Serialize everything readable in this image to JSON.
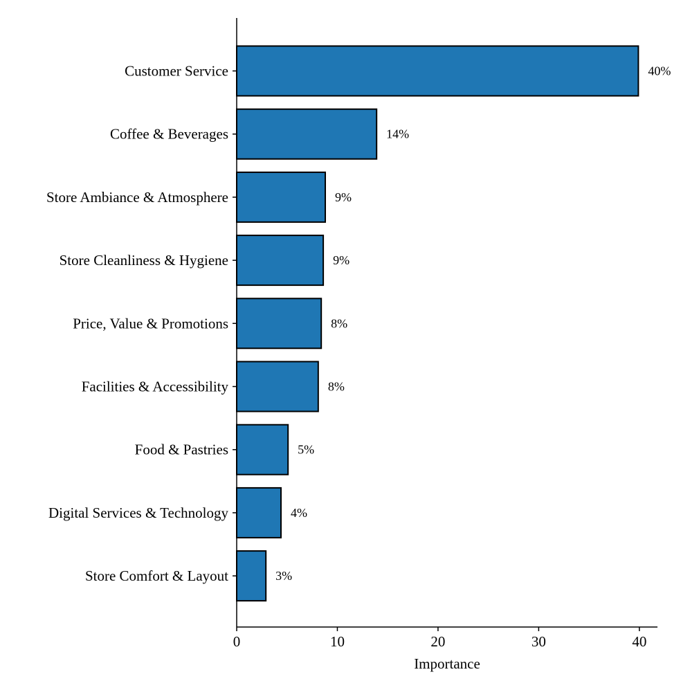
{
  "chart_data": {
    "type": "bar",
    "orientation": "horizontal",
    "categories": [
      "Customer Service",
      "Coffee & Beverages",
      "Store Ambiance & Atmosphere",
      "Store Cleanliness & Hygiene",
      "Price, Value & Promotions",
      "Facilities & Accessibility",
      "Food & Pastries",
      "Digital Services & Technology",
      "Store Comfort & Layout"
    ],
    "values": [
      39.9,
      13.9,
      8.8,
      8.6,
      8.4,
      8.1,
      5.1,
      4.4,
      2.9
    ],
    "data_labels": [
      "40%",
      "14%",
      "9%",
      "9%",
      "8%",
      "8%",
      "5%",
      "4%",
      "3%"
    ],
    "title": "",
    "xlabel": "Importance",
    "ylabel": "",
    "xlim": [
      0,
      41.8
    ],
    "xticks": [
      0,
      10,
      20,
      30,
      40
    ],
    "xtick_labels": [
      "0",
      "10",
      "20",
      "30",
      "40"
    ],
    "grid": false,
    "bar_color": "#1f77b4",
    "bar_edge_color": "#000000"
  }
}
